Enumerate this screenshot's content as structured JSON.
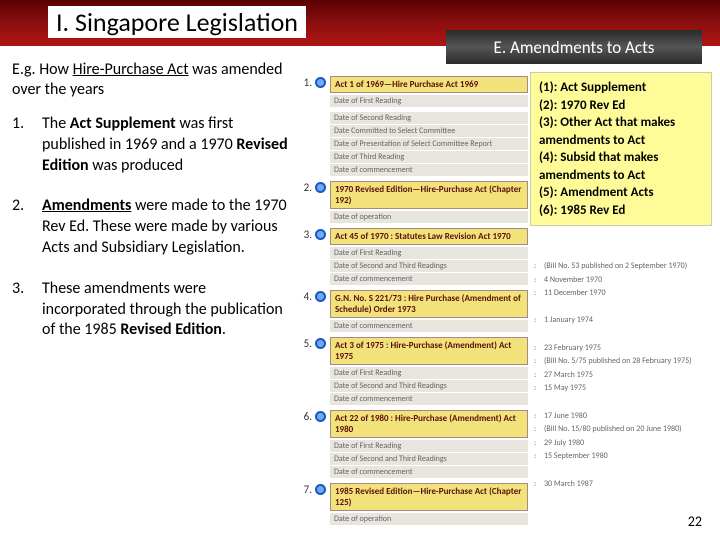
{
  "header": {
    "title": "I. Singapore Legislation",
    "subtitle": "E. Amendments to Acts"
  },
  "eg_prefix": "E.g. How ",
  "eg_link": "Hire-Purchase Act",
  "eg_suffix": " was amended over the years",
  "list": [
    {
      "num": "1.",
      "html": "The <b>Act Supplement</b> was first published in 1969 and a 1970 <b>Revised Edition</b> was produced"
    },
    {
      "num": "2.",
      "html": "<span class='u'><b>Amendments</b></span> were made to the 1970 Rev Ed. These were made by various Acts and Subsidiary Legislation."
    },
    {
      "num": "3.",
      "html": "These amendments were incorporated through the publication of the 1985 <b>Revised Edition</b>."
    }
  ],
  "timeline": [
    {
      "n": "1.",
      "title": "Act 1 of 1969—Hire Purchase Act 1969",
      "lines": [
        "Date of First Reading"
      ]
    },
    {
      "n": "",
      "title": "",
      "lines": [
        "Date of Second Reading",
        "Date Committed to Select Committee",
        "Date of Presentation of Select Committee Report",
        "Date of Third Reading",
        "Date of commencement"
      ]
    },
    {
      "n": "2.",
      "title": "1970 Revised Edition—Hire-Purchase Act (Chapter 192)",
      "lines": [
        "Date of operation"
      ]
    },
    {
      "n": "3.",
      "title": "Act 45 of 1970 : Statutes Law Revision Act 1970",
      "lines": [
        "Date of First Reading",
        "Date of Second and Third Readings",
        "Date of commencement"
      ]
    },
    {
      "n": "4.",
      "title": "G.N. No. S 221/73 : Hire Purchase (Amendment of Schedule) Order 1973",
      "lines": [
        "Date of commencement"
      ]
    },
    {
      "n": "5.",
      "title": "Act 3 of 1975 : Hire-Purchase (Amendment) Act 1975",
      "lines": [
        "Date of First Reading",
        "Date of Second and Third Readings",
        "Date of commencement"
      ]
    },
    {
      "n": "6.",
      "title": "Act 22 of 1980 : Hire-Purchase (Amendment) Act 1980",
      "lines": [
        "Date of First Reading",
        "Date of Second and Third Readings",
        "Date of commencement"
      ]
    },
    {
      "n": "7.",
      "title": "1985 Revised Edition—Hire-Purchase Act (Chapter 125)",
      "lines": [
        "Date of operation"
      ]
    }
  ],
  "legend": [
    "(1): Act Supplement",
    "(2): 1970 Rev Ed",
    "(3): Other Act that makes amendments to Act",
    "(4): Subsid that makes amendments to Act",
    "(5): Amendment Acts",
    "(6): 1985 Rev Ed"
  ],
  "meta": [
    "(Bill No. 53 published on 2 September 1970)",
    "4 November 1970",
    "11 December 1970",
    "",
    "1 January 1974",
    "",
    "23 February 1975",
    "(Bill No. 5/75 published on 28 February 1975)",
    "27 March 1975",
    "15 May 1975",
    "",
    "17 June 1980",
    "(Bill No. 15/80 published on 20 June 1980)",
    "29 July 1980",
    "15 September 1980",
    "",
    "30 March 1987"
  ],
  "page_number": "22",
  "colors": {
    "header_gradient_top": "#5a0000",
    "header_gradient_bottom": "#b21515",
    "subtitle_bg": "#2a2a2a",
    "marker_border": "#195ab5",
    "marker_fill": "#6fa8ff",
    "yellow_box_bg": "#f1e27a",
    "yellow_box_text": "#5a0f0f",
    "legend_bg": "#fffb99"
  }
}
